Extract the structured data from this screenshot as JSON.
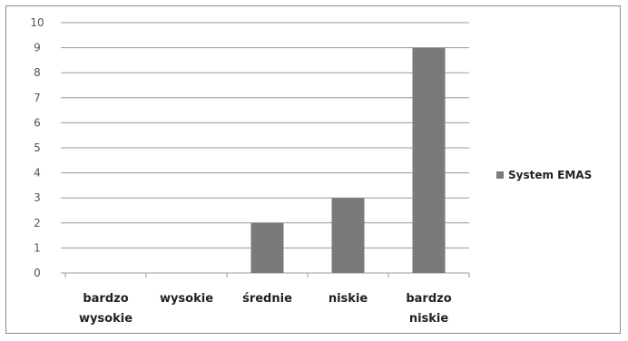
{
  "chart_data": {
    "type": "bar",
    "categories": [
      [
        "bardzo",
        "wysokie"
      ],
      [
        "wysokie"
      ],
      [
        "średnie"
      ],
      [
        "niskie"
      ],
      [
        "bardzo",
        "niskie"
      ]
    ],
    "series": [
      {
        "name": "System EMAS",
        "values": [
          0,
          0,
          2,
          3,
          9
        ],
        "color": "#7a7a7a"
      }
    ],
    "ylim": [
      0,
      10
    ],
    "yticks": [
      0,
      1,
      2,
      3,
      4,
      5,
      6,
      7,
      8,
      9,
      10
    ],
    "grid": true,
    "legend_position": "right"
  }
}
